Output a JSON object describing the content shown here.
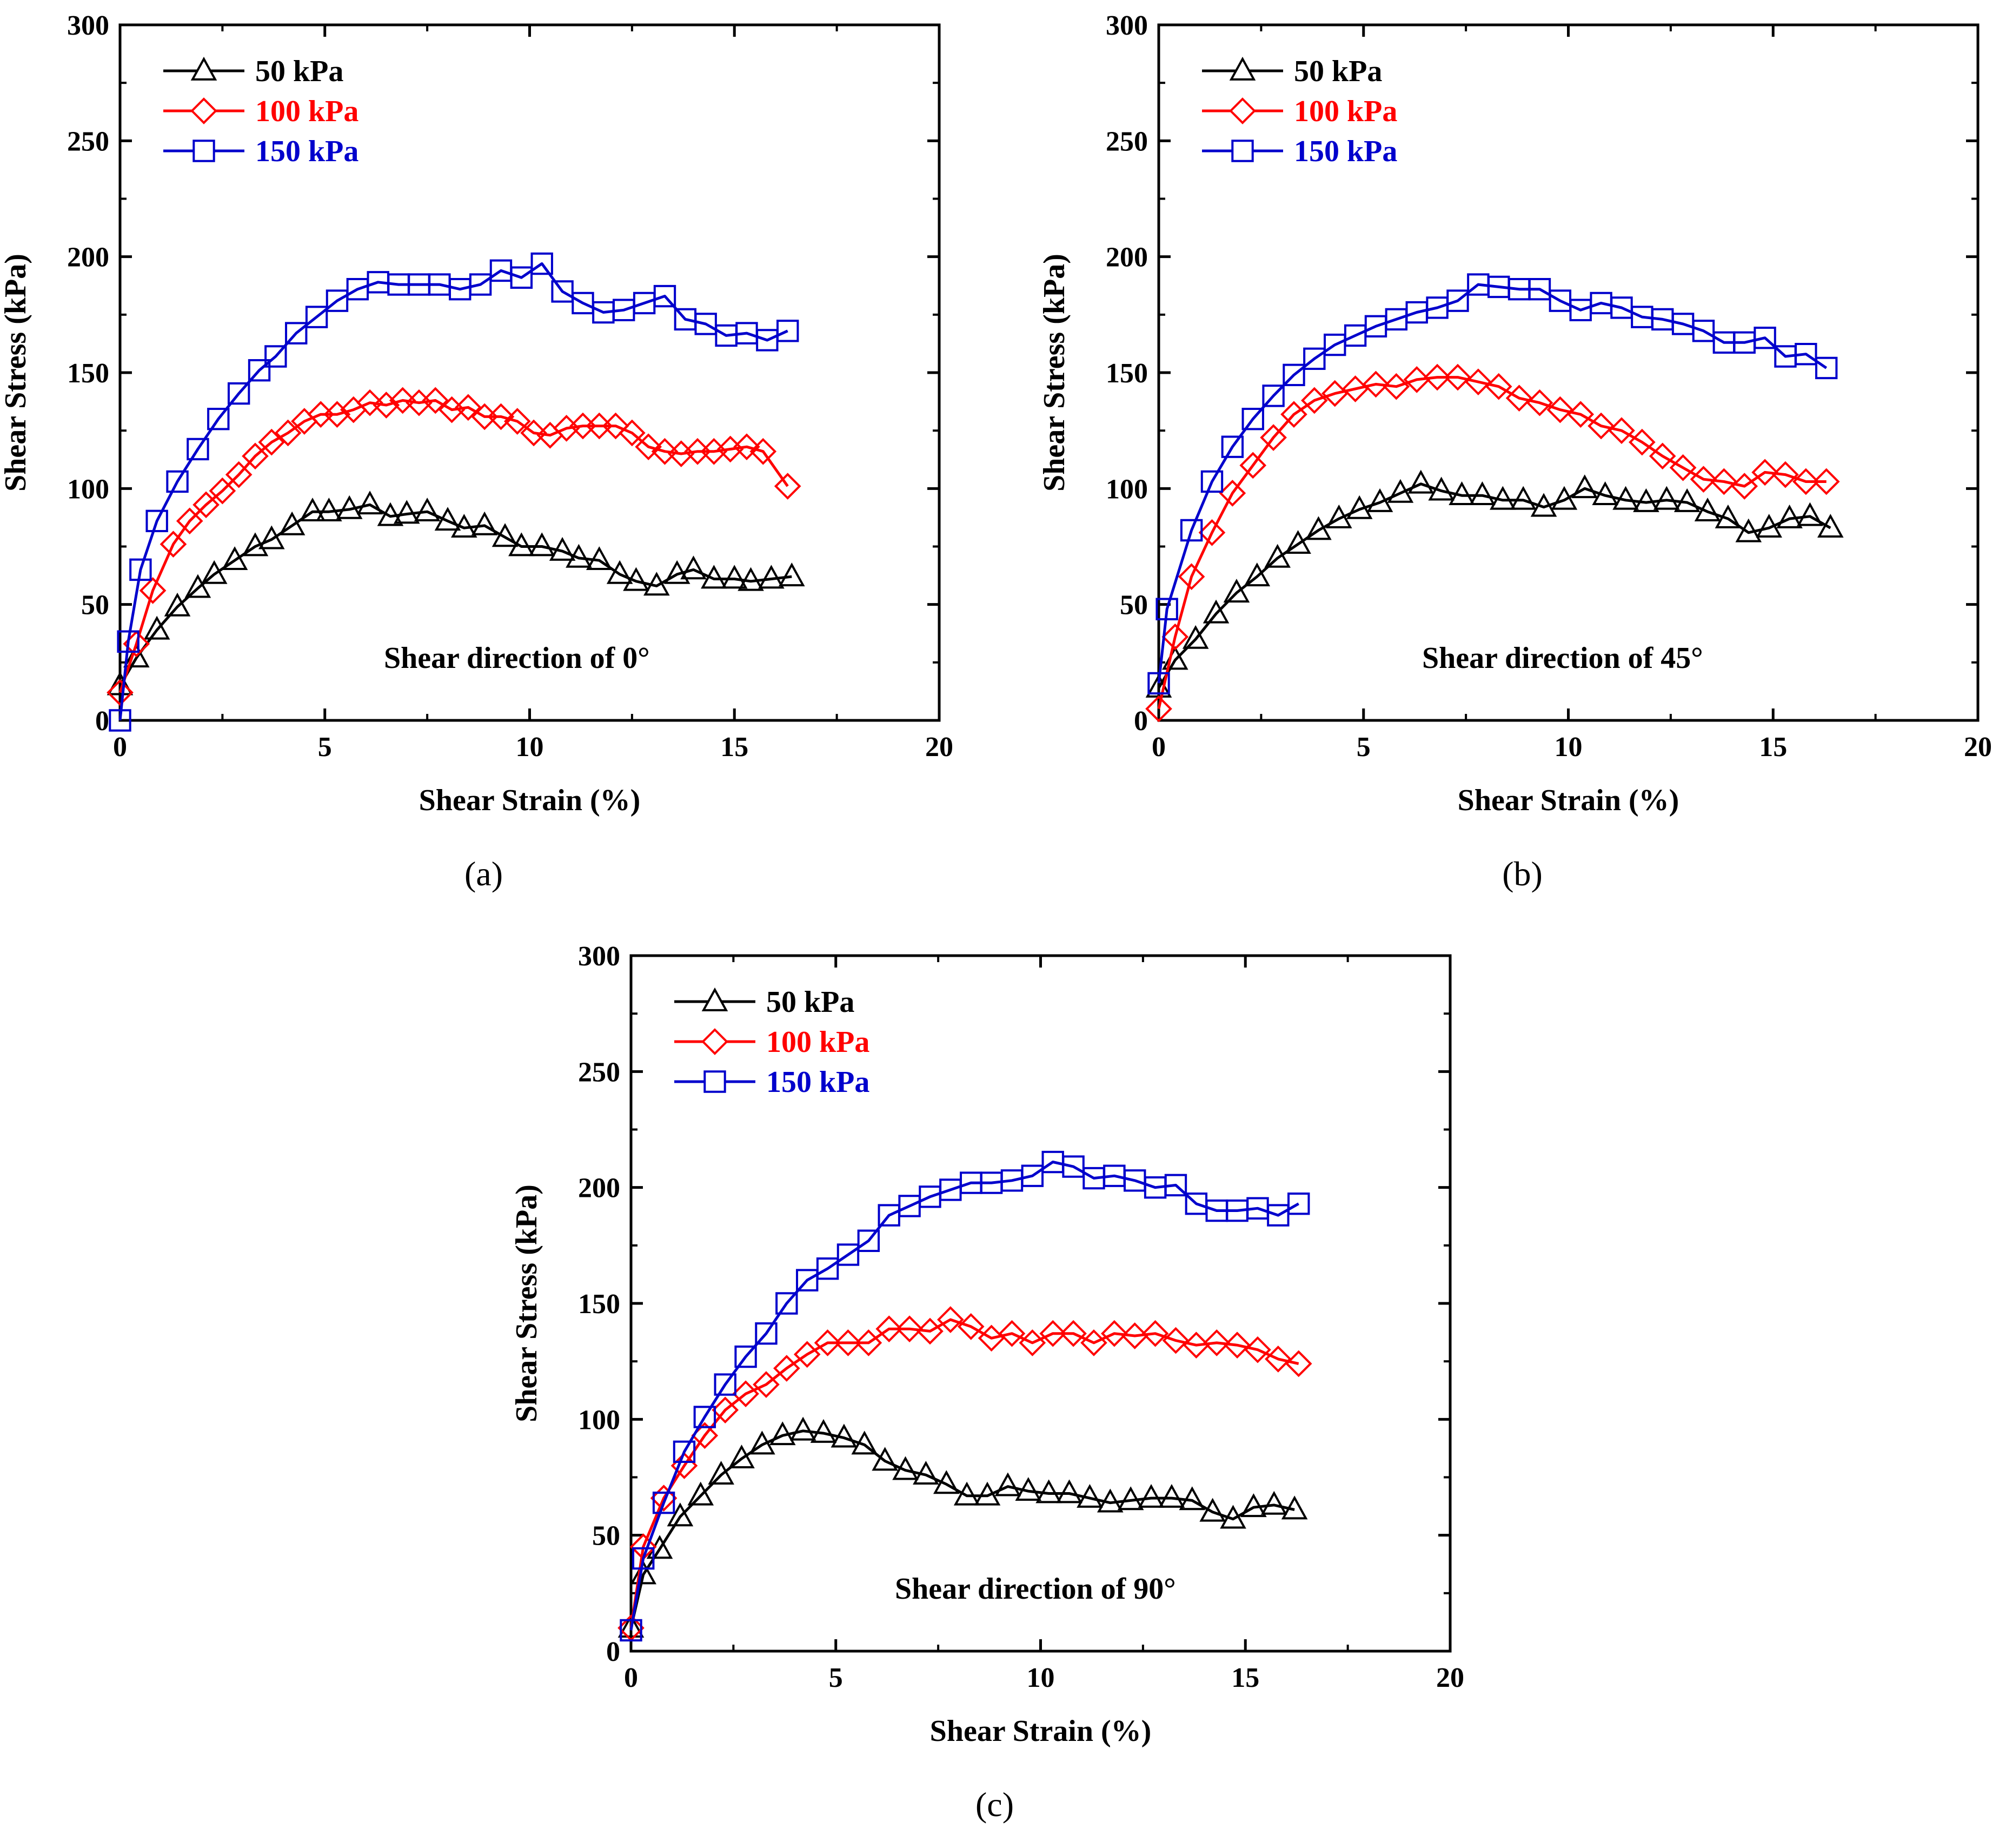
{
  "chart_data": [
    {
      "type": "line",
      "panel_label": "(a)",
      "annotation": "Shear direction of 0°",
      "xlabel": "Shear Strain (%)",
      "ylabel": "Shear Stress (kPa)",
      "xlim": [
        0,
        20
      ],
      "ylim": [
        0,
        300
      ],
      "xticks": [
        "0",
        "5",
        "10",
        "15",
        "20"
      ],
      "yticks": [
        "0",
        "50",
        "100",
        "150",
        "200",
        "250",
        "300"
      ],
      "legend_position": "top-left",
      "series": [
        {
          "name": "50 kPa",
          "color": "#000000",
          "marker": "triangle",
          "x": [
            0,
            0.4,
            0.9,
            1.4,
            1.9,
            2.3,
            2.8,
            3.3,
            3.7,
            4.2,
            4.7,
            5.1,
            5.6,
            6.1,
            6.6,
            7.0,
            7.5,
            8.0,
            8.4,
            8.9,
            9.4,
            9.8,
            10.3,
            10.8,
            11.2,
            11.7,
            12.2,
            12.6,
            13.1,
            13.6,
            14.0,
            14.5,
            15.0,
            15.4,
            15.9,
            16.4
          ],
          "y": [
            15,
            27,
            39,
            49,
            57,
            63,
            69,
            75,
            78,
            84,
            90,
            90,
            91,
            93,
            88,
            89,
            90,
            86,
            83,
            84,
            79,
            75,
            75,
            73,
            70,
            69,
            63,
            60,
            58,
            63,
            65,
            61,
            61,
            60,
            61,
            62
          ]
        },
        {
          "name": "100 kPa",
          "color": "#ff0000",
          "marker": "diamond",
          "x": [
            0,
            0.4,
            0.8,
            1.3,
            1.7,
            2.1,
            2.5,
            2.9,
            3.3,
            3.7,
            4.1,
            4.5,
            4.9,
            5.3,
            5.7,
            6.1,
            6.5,
            6.9,
            7.3,
            7.7,
            8.1,
            8.5,
            8.9,
            9.3,
            9.7,
            10.1,
            10.5,
            10.9,
            11.3,
            11.7,
            12.1,
            12.5,
            12.9,
            13.3,
            13.7,
            14.1,
            14.5,
            14.9,
            15.3,
            15.7,
            16.3
          ],
          "y": [
            12,
            33,
            56,
            76,
            86,
            93,
            99,
            106,
            114,
            120,
            124,
            129,
            132,
            132,
            134,
            137,
            136,
            138,
            137,
            138,
            134,
            135,
            131,
            131,
            129,
            124,
            123,
            126,
            127,
            127,
            127,
            124,
            118,
            116,
            115,
            116,
            116,
            117,
            118,
            116,
            101
          ]
        },
        {
          "name": "150 kPa",
          "color": "#0000cc",
          "marker": "square",
          "x": [
            0,
            0.2,
            0.5,
            0.9,
            1.4,
            1.9,
            2.4,
            2.9,
            3.4,
            3.8,
            4.3,
            4.8,
            5.3,
            5.8,
            6.3,
            6.8,
            7.3,
            7.8,
            8.3,
            8.8,
            9.3,
            9.8,
            10.3,
            10.8,
            11.3,
            11.8,
            12.3,
            12.8,
            13.3,
            13.8,
            14.3,
            14.8,
            15.3,
            15.8,
            16.3
          ],
          "y": [
            0,
            34,
            65,
            86,
            103,
            117,
            130,
            141,
            151,
            157,
            167,
            174,
            181,
            186,
            189,
            188,
            188,
            188,
            186,
            188,
            194,
            191,
            197,
            185,
            180,
            176,
            177,
            180,
            183,
            173,
            171,
            166,
            167,
            164,
            168
          ]
        }
      ]
    },
    {
      "type": "line",
      "panel_label": "(b)",
      "annotation": "Shear direction of 45°",
      "xlabel": "Shear Strain (%)",
      "ylabel": "Shear Stress (kPa)",
      "xlim": [
        0,
        20
      ],
      "ylim": [
        0,
        300
      ],
      "xticks": [
        "0",
        "5",
        "10",
        "15",
        "20"
      ],
      "yticks": [
        "0",
        "50",
        "100",
        "150",
        "200",
        "250",
        "300"
      ],
      "legend_position": "top-left",
      "series": [
        {
          "name": "50 kPa",
          "color": "#000000",
          "marker": "triangle",
          "x": [
            0,
            0.4,
            0.9,
            1.4,
            1.9,
            2.4,
            2.9,
            3.4,
            3.9,
            4.4,
            4.9,
            5.4,
            5.9,
            6.4,
            6.9,
            7.4,
            7.9,
            8.4,
            8.9,
            9.4,
            9.9,
            10.4,
            10.9,
            11.4,
            11.9,
            12.4,
            12.9,
            13.4,
            13.9,
            14.4,
            14.9,
            15.4,
            15.9,
            16.4
          ],
          "y": [
            14,
            26,
            35,
            46,
            55,
            62,
            70,
            76,
            82,
            87,
            91,
            94,
            98,
            102,
            99,
            97,
            97,
            95,
            95,
            92,
            95,
            100,
            97,
            95,
            94,
            95,
            94,
            90,
            87,
            81,
            83,
            87,
            88,
            83
          ]
        },
        {
          "name": "100 kPa",
          "color": "#ff0000",
          "marker": "diamond",
          "x": [
            0,
            0.4,
            0.8,
            1.3,
            1.8,
            2.3,
            2.8,
            3.3,
            3.8,
            4.3,
            4.8,
            5.3,
            5.8,
            6.3,
            6.8,
            7.3,
            7.8,
            8.3,
            8.8,
            9.3,
            9.8,
            10.3,
            10.8,
            11.3,
            11.8,
            12.3,
            12.8,
            13.3,
            13.8,
            14.3,
            14.8,
            15.3,
            15.8,
            16.3
          ],
          "y": [
            5,
            36,
            62,
            81,
            98,
            110,
            122,
            132,
            138,
            141,
            143,
            145,
            144,
            147,
            148,
            148,
            146,
            144,
            139,
            137,
            134,
            132,
            127,
            125,
            120,
            114,
            109,
            104,
            103,
            101,
            107,
            106,
            103,
            103
          ]
        },
        {
          "name": "150 kPa",
          "color": "#0000cc",
          "marker": "square",
          "x": [
            0,
            0.2,
            0.8,
            1.3,
            1.8,
            2.3,
            2.8,
            3.3,
            3.8,
            4.3,
            4.8,
            5.3,
            5.8,
            6.3,
            6.8,
            7.3,
            7.8,
            8.3,
            8.8,
            9.3,
            9.8,
            10.3,
            10.8,
            11.3,
            11.8,
            12.3,
            12.8,
            13.3,
            13.8,
            14.3,
            14.8,
            15.3,
            15.8,
            16.3
          ],
          "y": [
            16,
            48,
            82,
            103,
            118,
            130,
            140,
            149,
            156,
            162,
            166,
            170,
            173,
            176,
            178,
            181,
            188,
            187,
            186,
            186,
            181,
            177,
            180,
            178,
            174,
            173,
            171,
            168,
            163,
            163,
            165,
            157,
            158,
            152
          ]
        }
      ]
    },
    {
      "type": "line",
      "panel_label": "(c)",
      "annotation": "Shear direction of 90°",
      "xlabel": "Shear Strain (%)",
      "ylabel": "Shear Stress (kPa)",
      "xlim": [
        0,
        20
      ],
      "ylim": [
        0,
        300
      ],
      "xticks": [
        "0",
        "5",
        "10",
        "15",
        "20"
      ],
      "yticks": [
        "0",
        "50",
        "100",
        "150",
        "200",
        "250",
        "300"
      ],
      "legend_position": "top-left",
      "series": [
        {
          "name": "50 kPa",
          "color": "#000000",
          "marker": "triangle",
          "x": [
            0,
            0.3,
            0.7,
            1.2,
            1.7,
            2.2,
            2.7,
            3.2,
            3.7,
            4.2,
            4.7,
            5.2,
            5.7,
            6.2,
            6.7,
            7.2,
            7.7,
            8.2,
            8.7,
            9.2,
            9.7,
            10.2,
            10.7,
            11.2,
            11.7,
            12.2,
            12.7,
            13.2,
            13.7,
            14.2,
            14.7,
            15.2,
            15.7,
            16.2
          ],
          "y": [
            10,
            33,
            44,
            58,
            67,
            76,
            83,
            89,
            93,
            95,
            94,
            92,
            89,
            82,
            78,
            76,
            72,
            67,
            67,
            71,
            69,
            68,
            68,
            66,
            64,
            65,
            66,
            66,
            65,
            60,
            57,
            62,
            63,
            61
          ]
        },
        {
          "name": "100 kPa",
          "color": "#ff0000",
          "marker": "diamond",
          "x": [
            0,
            0.3,
            0.8,
            1.3,
            1.8,
            2.3,
            2.8,
            3.3,
            3.8,
            4.3,
            4.8,
            5.3,
            5.8,
            6.3,
            6.8,
            7.3,
            7.8,
            8.3,
            8.8,
            9.3,
            9.8,
            10.3,
            10.8,
            11.3,
            11.8,
            12.3,
            12.8,
            13.3,
            13.8,
            14.3,
            14.8,
            15.3,
            15.8,
            16.3
          ],
          "y": [
            10,
            45,
            66,
            80,
            93,
            104,
            111,
            115,
            122,
            128,
            133,
            133,
            133,
            139,
            139,
            138,
            143,
            140,
            135,
            137,
            133,
            137,
            137,
            133,
            137,
            136,
            137,
            134,
            132,
            133,
            132,
            130,
            126,
            124
          ]
        },
        {
          "name": "150 kPa",
          "color": "#0000cc",
          "marker": "square",
          "x": [
            0,
            0.3,
            0.8,
            1.3,
            1.8,
            2.3,
            2.8,
            3.3,
            3.8,
            4.3,
            4.8,
            5.3,
            5.8,
            6.3,
            6.8,
            7.3,
            7.8,
            8.3,
            8.8,
            9.3,
            9.8,
            10.3,
            10.8,
            11.3,
            11.8,
            12.3,
            12.8,
            13.3,
            13.8,
            14.3,
            14.8,
            15.3,
            15.8,
            16.3
          ],
          "y": [
            9,
            40,
            64,
            86,
            101,
            115,
            127,
            137,
            150,
            160,
            165,
            171,
            177,
            188,
            192,
            196,
            199,
            202,
            202,
            203,
            205,
            211,
            209,
            204,
            205,
            203,
            200,
            201,
            193,
            190,
            190,
            191,
            188,
            193
          ]
        }
      ]
    }
  ]
}
